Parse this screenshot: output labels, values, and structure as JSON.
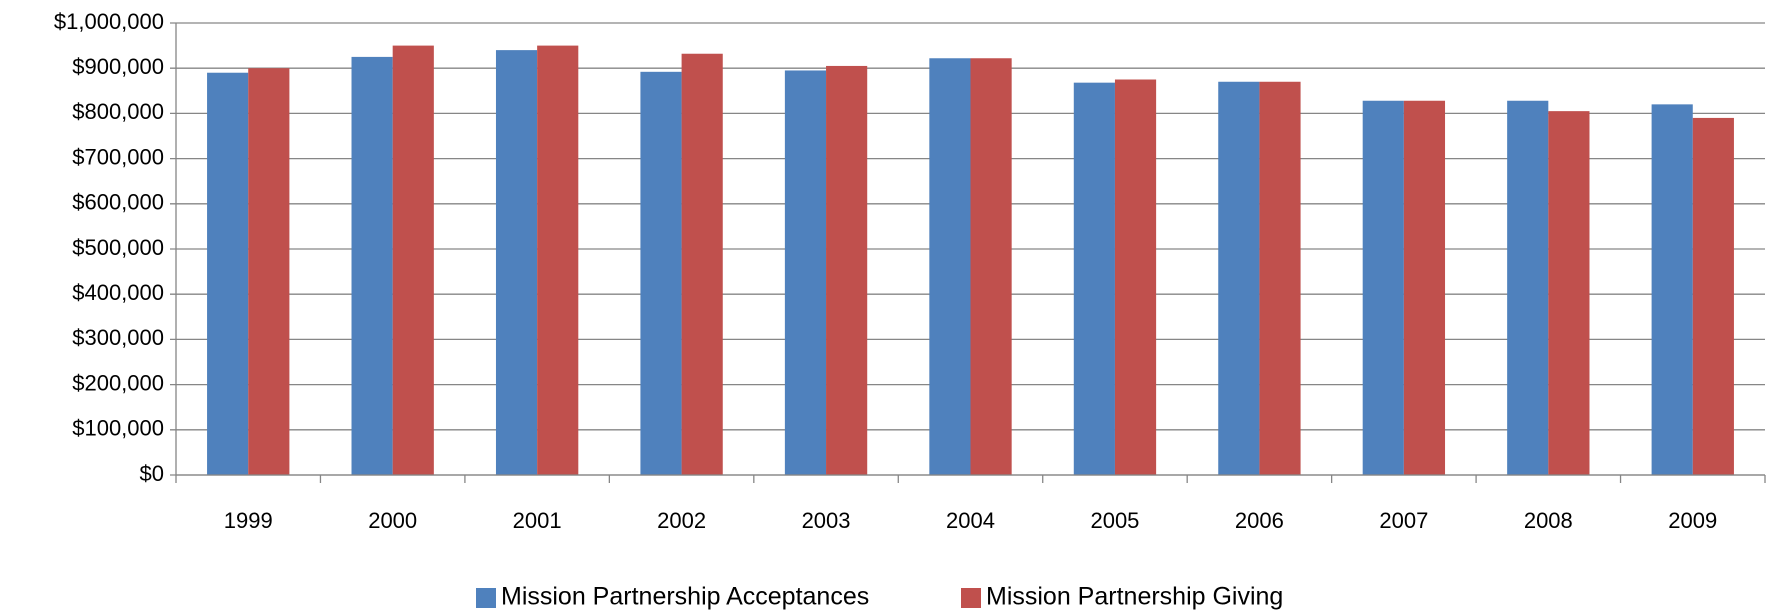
{
  "chart_data": {
    "type": "bar",
    "categories": [
      "1999",
      "2000",
      "2001",
      "2002",
      "2003",
      "2004",
      "2005",
      "2006",
      "2007",
      "2008",
      "2009"
    ],
    "series": [
      {
        "name": "Mission Partnership Acceptances",
        "color": "#4f81bd",
        "values": [
          890000,
          925000,
          940000,
          892000,
          895000,
          922000,
          868000,
          870000,
          828000,
          828000,
          820000
        ]
      },
      {
        "name": "Mission Partnership Giving",
        "color": "#c0504d",
        "values": [
          900000,
          950000,
          950000,
          932000,
          905000,
          922000,
          875000,
          870000,
          828000,
          805000,
          790000
        ]
      }
    ],
    "ylim": [
      0,
      1000000
    ],
    "yticks": [
      {
        "value": 0,
        "label": "$0"
      },
      {
        "value": 100000,
        "label": "$100,000"
      },
      {
        "value": 200000,
        "label": "$200,000"
      },
      {
        "value": 300000,
        "label": "$300,000"
      },
      {
        "value": 400000,
        "label": "$400,000"
      },
      {
        "value": 500000,
        "label": "$500,000"
      },
      {
        "value": 600000,
        "label": "$600,000"
      },
      {
        "value": 700000,
        "label": "$700,000"
      },
      {
        "value": 800000,
        "label": "$800,000"
      },
      {
        "value": 900000,
        "label": "$900,000"
      },
      {
        "value": 1000000,
        "label": "$1,000,000"
      }
    ],
    "grid": true,
    "legend": "bottom"
  }
}
